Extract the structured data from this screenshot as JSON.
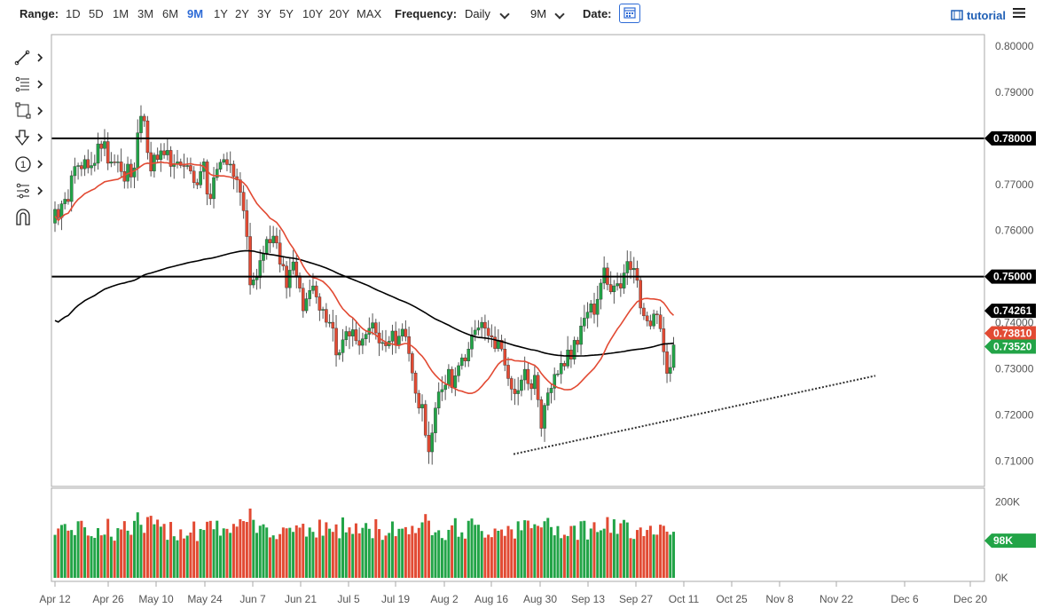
{
  "toolbar": {
    "range_label": "Range:",
    "ranges": [
      "1D",
      "5D",
      "1M",
      "3M",
      "6M",
      "9M",
      "1Y",
      "2Y",
      "3Y",
      "5Y",
      "10Y",
      "20Y",
      "MAX"
    ],
    "active_range": "9M",
    "frequency_label": "Frequency:",
    "frequency_value": "Daily",
    "period_value": "9M",
    "date_label": "Date:",
    "tutorial_label": "tutorial"
  },
  "tools": [
    "line-tool-icon",
    "fib-tool-icon",
    "rectangle-tool-icon",
    "arrow-tool-icon",
    "annotation-tool-icon",
    "measure-tool-icon",
    "magnet-tool-icon"
  ],
  "colors": {
    "up": "#22a447",
    "down": "#e24a33",
    "ma_short": "#e24a33",
    "ma_long": "#000000",
    "accent": "#2e6bd6"
  },
  "chart_data": {
    "type": "candlestick",
    "x_tick_labels": [
      "Apr 12",
      "Apr 26",
      "May 10",
      "May 24",
      "Jun 7",
      "Jun 21",
      "Jul 5",
      "Jul 19",
      "Aug 2",
      "Aug 16",
      "Aug 30",
      "Sep 13",
      "Sep 27",
      "Oct 11",
      "Oct 25",
      "Nov 8",
      "Nov 22",
      "Dec 6",
      "Dec 20"
    ],
    "y_tick_labels": [
      "0.80000",
      "0.79000",
      "0.78000",
      "0.77000",
      "0.76000",
      "0.75000",
      "0.74000",
      "0.73000",
      "0.72000",
      "0.71000"
    ],
    "ylim": [
      0.7045,
      0.8025
    ],
    "volume_tick_labels": [
      "200K",
      "100K",
      "0K"
    ],
    "volume_ylim": [
      0,
      220000
    ],
    "horizontal_lines": [
      0.78,
      0.75
    ],
    "horizontal_line_labels": [
      "0.78000",
      "0.75000"
    ],
    "ma_labels": {
      "long": "0.74261",
      "short": "0.73810",
      "last_price": "0.73520"
    },
    "volume_label": "98K",
    "trend_line": {
      "from": [
        "Aug 20",
        0.7115
      ],
      "to": [
        "Nov 22",
        0.7285
      ]
    },
    "closes": [
      0.7646,
      0.7628,
      0.7658,
      0.7668,
      0.7663,
      0.7719,
      0.7739,
      0.7741,
      0.7734,
      0.7754,
      0.7736,
      0.7741,
      0.7746,
      0.7788,
      0.7778,
      0.7793,
      0.7746,
      0.7749,
      0.7748,
      0.7749,
      0.7728,
      0.7707,
      0.7744,
      0.7716,
      0.7736,
      0.7812,
      0.7848,
      0.7838,
      0.7769,
      0.7729,
      0.7764,
      0.7754,
      0.7773,
      0.7764,
      0.7774,
      0.7739,
      0.7744,
      0.7749,
      0.7741,
      0.7739,
      0.7741,
      0.7729,
      0.7704,
      0.7699,
      0.7728,
      0.7749,
      0.7679,
      0.7669,
      0.7715,
      0.7733,
      0.7748,
      0.7754,
      0.7743,
      0.7744,
      0.7717,
      0.771,
      0.7683,
      0.7643,
      0.7587,
      0.7482,
      0.7493,
      0.7498,
      0.7535,
      0.7551,
      0.7581,
      0.7573,
      0.7588,
      0.7573,
      0.7527,
      0.7523,
      0.7476,
      0.7514,
      0.7532,
      0.7502,
      0.7475,
      0.7426,
      0.7452,
      0.747,
      0.748,
      0.7456,
      0.7427,
      0.7429,
      0.7401,
      0.7401,
      0.7388,
      0.733,
      0.7335,
      0.7363,
      0.7381,
      0.7371,
      0.7385,
      0.7361,
      0.7351,
      0.7365,
      0.7375,
      0.7388,
      0.74,
      0.7378,
      0.7356,
      0.7357,
      0.735,
      0.736,
      0.7382,
      0.7352,
      0.7371,
      0.7386,
      0.737,
      0.7333,
      0.7291,
      0.7247,
      0.7215,
      0.7223,
      0.7156,
      0.712,
      0.7161,
      0.7215,
      0.725,
      0.7255,
      0.7265,
      0.7299,
      0.7259,
      0.7285,
      0.7307,
      0.7324,
      0.7317,
      0.7343,
      0.7374,
      0.7384,
      0.7389,
      0.7401,
      0.7388,
      0.7372,
      0.7369,
      0.7344,
      0.7362,
      0.7343,
      0.7308,
      0.7279,
      0.7256,
      0.7246,
      0.7253,
      0.7276,
      0.7299,
      0.7268,
      0.7257,
      0.7286,
      0.7233,
      0.7171,
      0.7221,
      0.7248,
      0.7258,
      0.7288,
      0.7289,
      0.7312,
      0.7306,
      0.7341,
      0.7321,
      0.7362,
      0.7353,
      0.7393,
      0.741,
      0.7423,
      0.7441,
      0.7418,
      0.7451,
      0.7486,
      0.7519,
      0.7483,
      0.7467,
      0.748,
      0.7485,
      0.7475,
      0.7508,
      0.7533,
      0.7515,
      0.7518,
      0.7492,
      0.7432,
      0.7415,
      0.7404,
      0.7393,
      0.7419,
      0.7417,
      0.7387,
      0.7337,
      0.729,
      0.7303,
      0.7352
    ]
  }
}
